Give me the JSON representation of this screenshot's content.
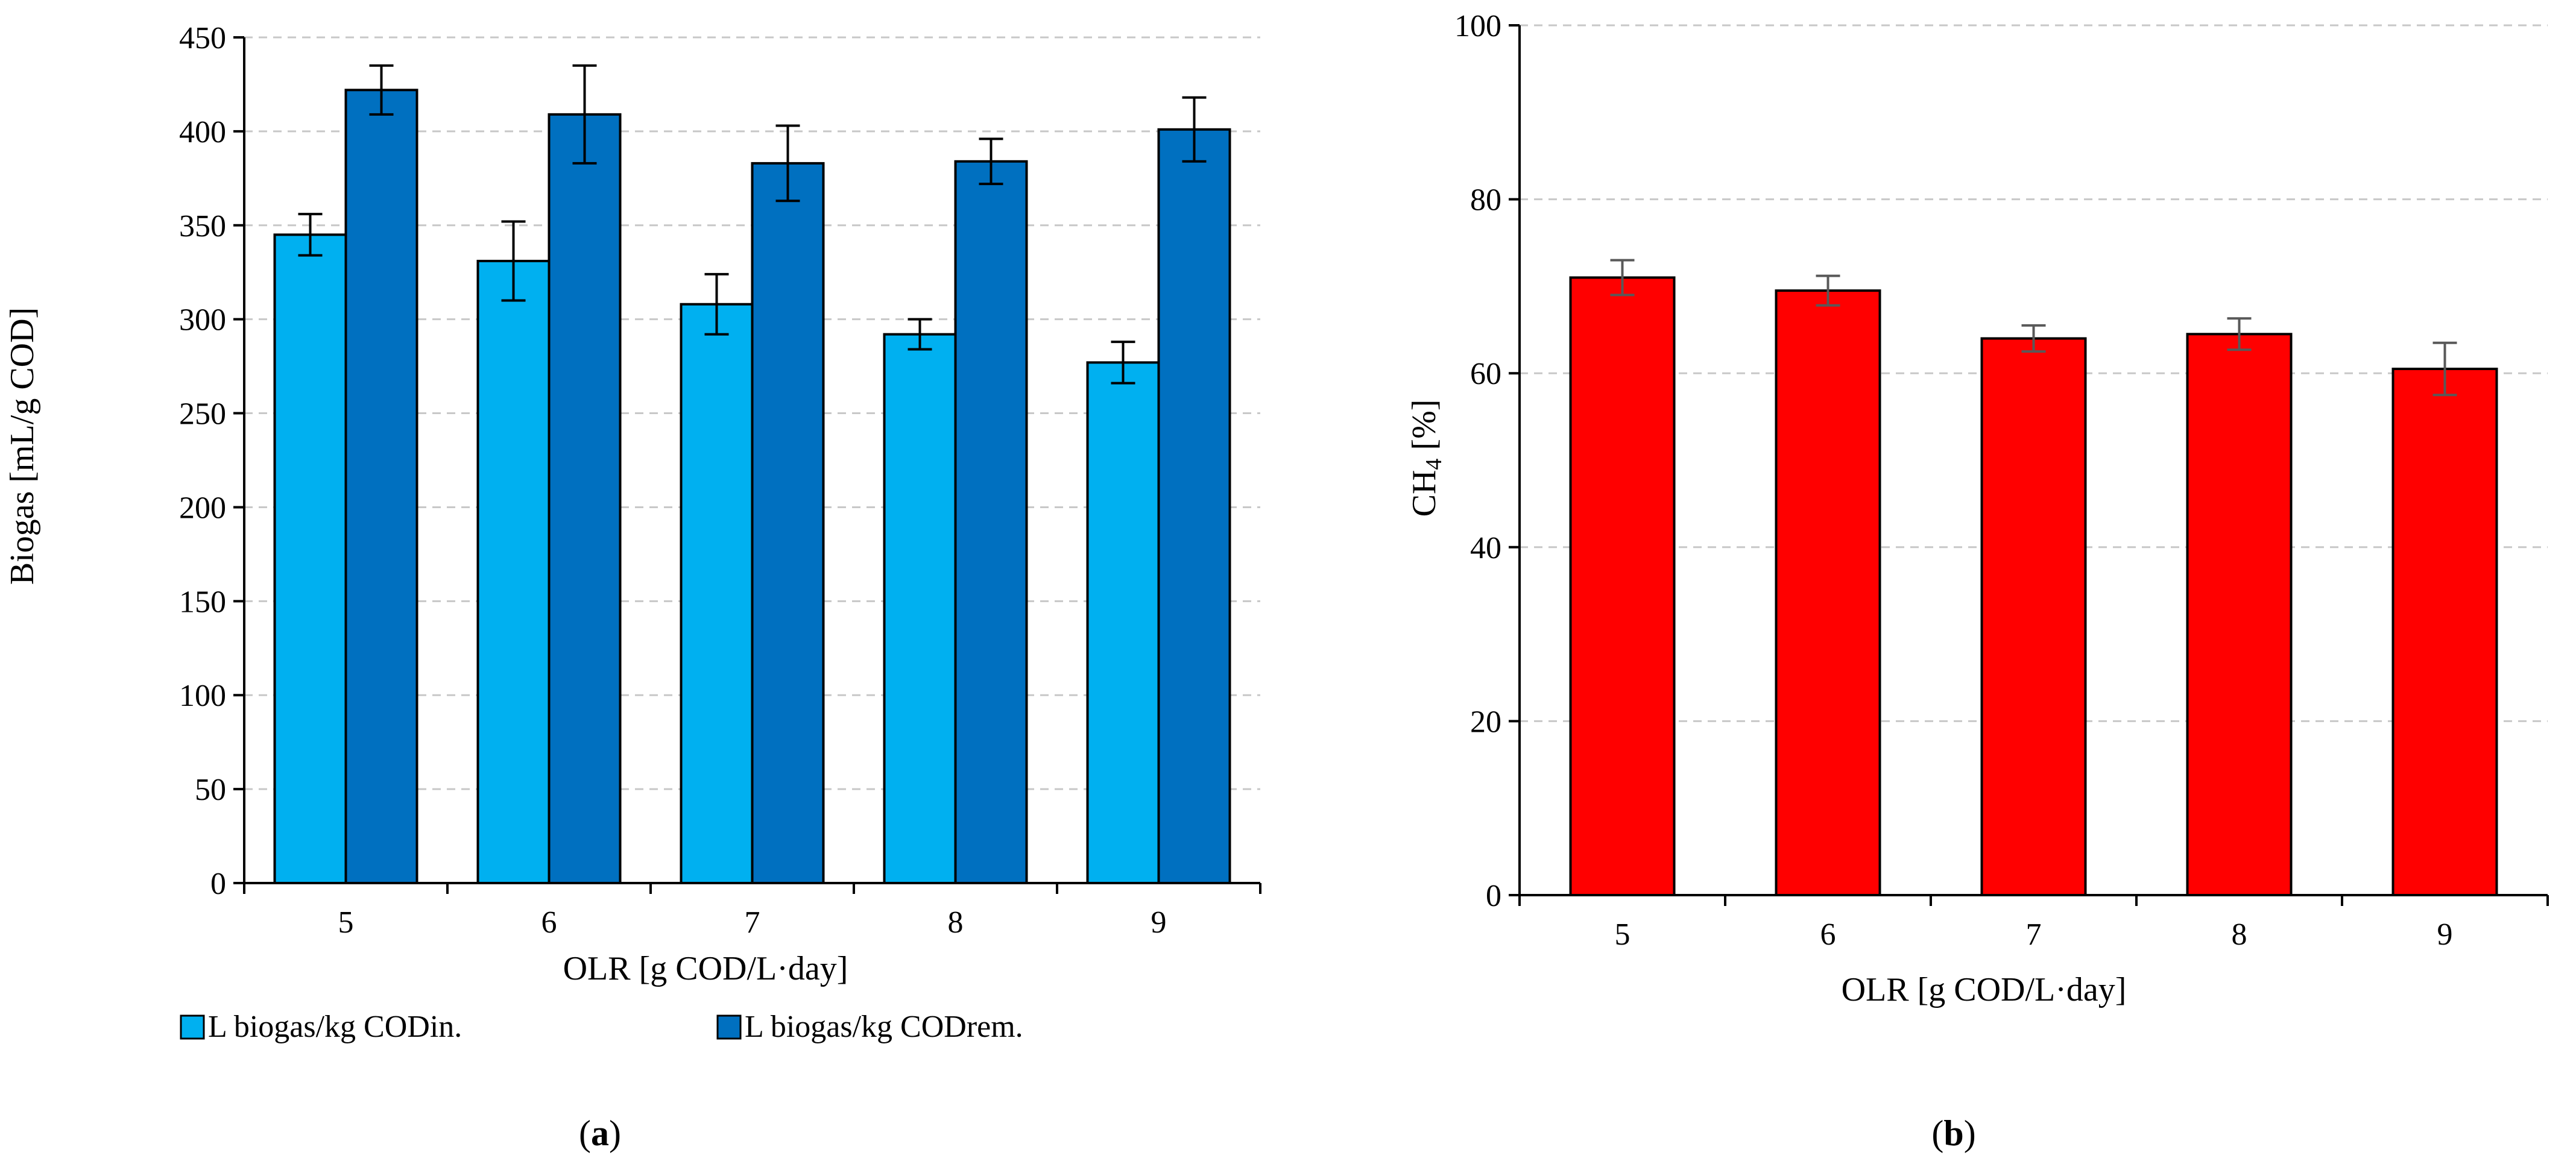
{
  "chart_data": [
    {
      "id": "a",
      "type": "bar",
      "panel_label": "(a)",
      "panel_letter": "a",
      "xlabel": "OLR [g COD/L·day]",
      "ylabel": "Biogas [mL/g COD]",
      "ylim": [
        0,
        450
      ],
      "yticks": [
        0,
        50,
        100,
        150,
        200,
        250,
        300,
        350,
        400,
        450
      ],
      "categories": [
        "5",
        "6",
        "7",
        "8",
        "9"
      ],
      "grid": true,
      "legend_position": "bottom",
      "series": [
        {
          "name": "L biogas/kg CODin.",
          "color": "#00B0F0",
          "values": [
            345,
            331,
            308,
            292,
            277
          ],
          "errors": [
            11,
            21,
            16,
            8,
            11
          ]
        },
        {
          "name": "L biogas/kg CODrem.",
          "color": "#0070C0",
          "values": [
            422,
            409,
            383,
            384,
            401
          ],
          "errors": [
            13,
            26,
            20,
            12,
            17
          ]
        }
      ]
    },
    {
      "id": "b",
      "type": "bar",
      "panel_label": "(b)",
      "panel_letter": "b",
      "xlabel": "OLR [g COD/L·day]",
      "ylabel": "CH4 [%]",
      "ylabel_main": "CH",
      "ylabel_sub": "4",
      "ylabel_rest": " [%]",
      "ylim": [
        0,
        100
      ],
      "yticks": [
        0,
        20,
        40,
        60,
        80,
        100
      ],
      "categories": [
        "5",
        "6",
        "7",
        "8",
        "9"
      ],
      "grid": true,
      "series": [
        {
          "name": "CH4",
          "color": "#FF0000",
          "values": [
            71,
            69.5,
            64,
            64.5,
            60.5
          ],
          "errors": [
            2,
            1.7,
            1.5,
            1.8,
            3
          ]
        }
      ]
    }
  ]
}
